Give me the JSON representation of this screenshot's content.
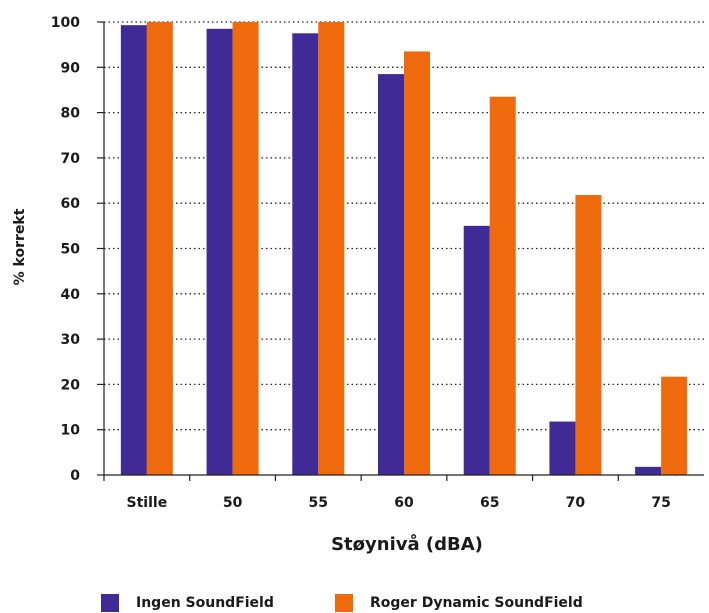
{
  "chart_data": {
    "type": "bar",
    "xlabel": "Støynivå (dBA)",
    "ylabel": "% korrekt",
    "categories": [
      "Stille",
      "50",
      "55",
      "60",
      "65",
      "70",
      "75"
    ],
    "ylim": [
      0,
      100
    ],
    "yticks": [
      0,
      10,
      20,
      30,
      40,
      50,
      60,
      70,
      80,
      90,
      100
    ],
    "grid": true,
    "legend_position": "bottom",
    "series": [
      {
        "name": "Ingen SoundField",
        "color": "#3f2a96",
        "values": [
          99.3,
          98.5,
          97.5,
          88.5,
          55,
          11.8,
          1.8
        ]
      },
      {
        "name": "Roger Dynamic SoundField",
        "color": "#ee6a0c",
        "values": [
          100,
          100,
          100,
          93.5,
          83.5,
          61.8,
          21.7
        ]
      }
    ]
  }
}
